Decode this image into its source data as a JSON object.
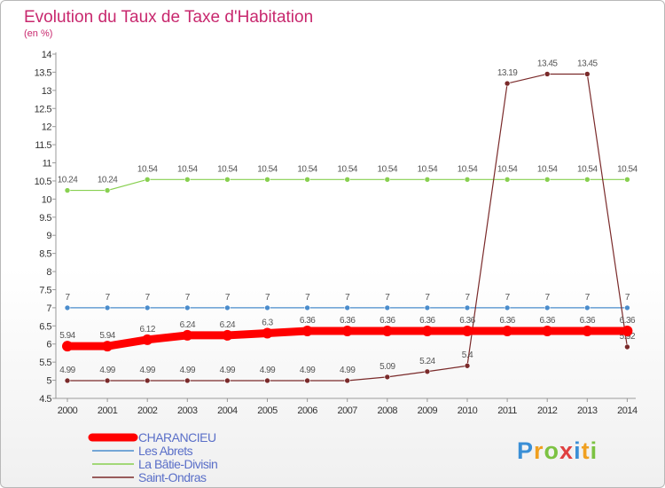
{
  "chart_data": {
    "type": "line",
    "title": "Evolution du Taux de Taxe d'Habitation",
    "subtitle": "(en %)",
    "x": [
      "2000",
      "2001",
      "2002",
      "2003",
      "2004",
      "2005",
      "2006",
      "2007",
      "2008",
      "2009",
      "2010",
      "2011",
      "2012",
      "2013",
      "2014"
    ],
    "ylim": [
      4.5,
      14
    ],
    "yticks": [
      "4.5",
      "5",
      "5.5",
      "6",
      "6.5",
      "7",
      "7.5",
      "8",
      "8.5",
      "9",
      "9.5",
      "10",
      "10.5",
      "11",
      "11.5",
      "12",
      "12.5",
      "13",
      "13.5",
      "14"
    ],
    "grid": false,
    "legend_position": "bottom-left",
    "series": [
      {
        "name": "CHARANCIEU",
        "color": "#ff0000",
        "values": [
          5.94,
          5.94,
          6.12,
          6.24,
          6.24,
          6.3,
          6.36,
          6.36,
          6.36,
          6.36,
          6.36,
          6.36,
          6.36,
          6.36,
          6.36
        ],
        "labels": [
          "5.94",
          "5.94",
          "6.12",
          "6.24",
          "6.24",
          "6.3",
          "6.36",
          "6.36",
          "6.36",
          "6.36",
          "6.36",
          "6.36",
          "6.36",
          "6.36",
          "6.36"
        ]
      },
      {
        "name": "Les Abrets",
        "color": "#4a8ccc",
        "values": [
          7,
          7,
          7,
          7,
          7,
          7,
          7,
          7,
          7,
          7,
          7,
          7,
          7,
          7,
          7
        ],
        "labels": [
          "7",
          "7",
          "7",
          "7",
          "7",
          "7",
          "7",
          "7",
          "7",
          "7",
          "7",
          "7",
          "7",
          "7",
          "7"
        ]
      },
      {
        "name": "La Bâtie-Divisin",
        "color": "#88d050",
        "values": [
          10.24,
          10.24,
          10.54,
          10.54,
          10.54,
          10.54,
          10.54,
          10.54,
          10.54,
          10.54,
          10.54,
          10.54,
          10.54,
          10.54,
          10.54
        ],
        "labels": [
          "10.24",
          "10.24",
          "10.54",
          "10.54",
          "10.54",
          "10.54",
          "10.54",
          "10.54",
          "10.54",
          "10.54",
          "10.54",
          "10.54",
          "10.54",
          "10.54",
          "10.54"
        ]
      },
      {
        "name": "Saint-Ondras",
        "color": "#7a2a2a",
        "values": [
          4.99,
          4.99,
          4.99,
          4.99,
          4.99,
          4.99,
          4.99,
          4.99,
          5.09,
          5.24,
          5.4,
          13.19,
          13.45,
          13.45,
          5.92
        ],
        "labels": [
          "4.99",
          "4.99",
          "4.99",
          "4.99",
          "4.99",
          "4.99",
          "4.99",
          "4.99",
          "5.09",
          "5.24",
          "5.4",
          "13.19",
          "13.45",
          "13.45",
          "5.92"
        ]
      }
    ]
  },
  "logo": {
    "letters": [
      "P",
      "r",
      "o",
      "x",
      "i",
      "t",
      "i"
    ],
    "colors": [
      "#3a8fd6",
      "#f0a020",
      "#7cc242",
      "#e04040",
      "#3a8fd6",
      "#f0a020",
      "#7cc242"
    ]
  }
}
